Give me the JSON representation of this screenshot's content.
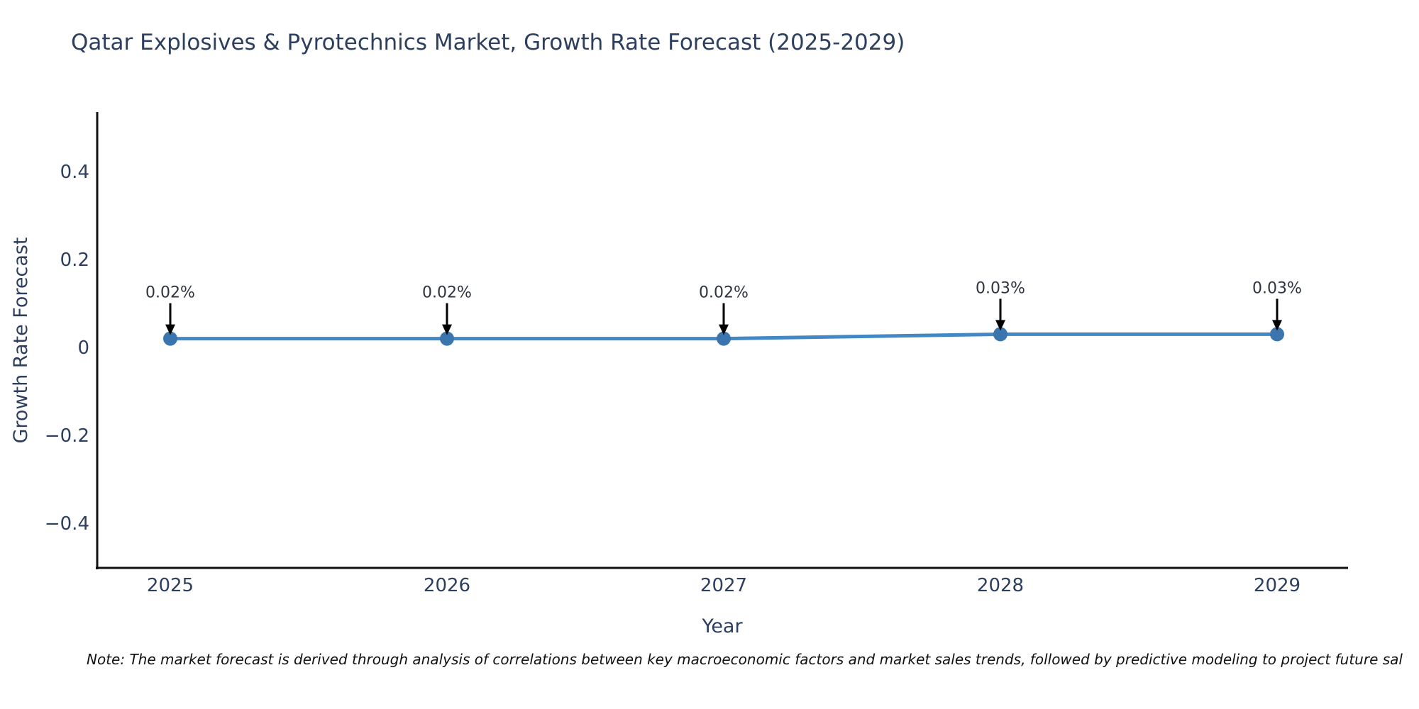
{
  "title": "Qatar Explosives & Pyrotechnics Market, Growth Rate Forecast (2025-2029)",
  "footnote": "Note: The market forecast is derived through analysis of correlations between key macroeconomic factors and market sales trends, followed by predictive modeling to project future sal",
  "chart_data": {
    "type": "line",
    "title": "Qatar Explosives & Pyrotechnics Market, Growth Rate Forecast (2025-2029)",
    "x": [
      "2025",
      "2026",
      "2027",
      "2028",
      "2029"
    ],
    "series": [
      {
        "name": "Growth Rate Forecast",
        "values": [
          0.02,
          0.02,
          0.02,
          0.03,
          0.03
        ]
      }
    ],
    "point_labels": [
      "0.02%",
      "0.02%",
      "0.02%",
      "0.03%",
      "0.03%"
    ],
    "xlabel": "Year",
    "ylabel": "Growth Rate Forecast",
    "ytick_labels": [
      "0.4",
      "0.2",
      "0",
      "−0.2",
      "−0.4"
    ],
    "ytick_values": [
      0.4,
      0.2,
      0,
      -0.2,
      -0.4
    ],
    "ylim": [
      -0.5,
      0.53
    ],
    "grid": false,
    "legend": "none",
    "colors": {
      "line": "#4288c5",
      "marker": "#3a76ad",
      "arrow": "#000000",
      "axis": "#101010",
      "text": "#2d3f5e"
    }
  }
}
